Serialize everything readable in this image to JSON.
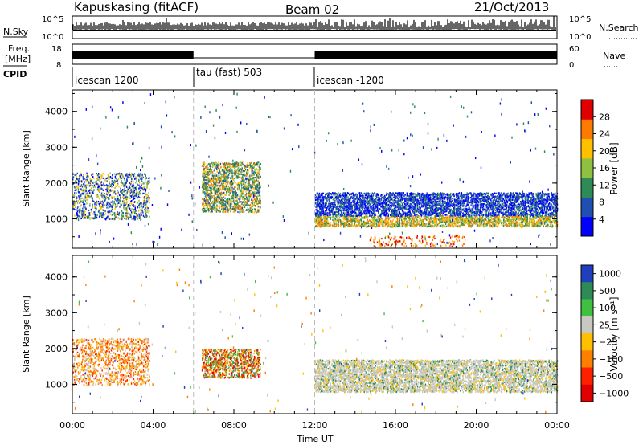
{
  "header": {
    "station": "Kapuskasing (fitACF)",
    "beam": "Beam 02",
    "date": "21/Oct/2013"
  },
  "aux_panels": {
    "nsky_label": "N.Sky",
    "nsky_ticks": [
      "10^5",
      "10^0"
    ],
    "nsearch_label": "N.Search",
    "nsearch_ticks": [
      "10^5",
      "10^0"
    ],
    "freq_label_1": "Freq.",
    "freq_label_2": "[MHz]",
    "freq_ticks": [
      "18",
      "8"
    ],
    "nave_label": "Nave",
    "nave_ticks": [
      "60",
      "0"
    ],
    "cpid_label": "CPID",
    "cpid_segments": [
      {
        "label": "icescan 1200",
        "start": 0,
        "end": 6
      },
      {
        "label": "tau (fast) 503",
        "start": 6,
        "end": 12
      },
      {
        "label": "icescan -1200",
        "start": 12,
        "end": 24
      }
    ]
  },
  "chart_data": [
    {
      "type": "heatmap",
      "panel": "power",
      "ylabel": "Slant Range [km]",
      "yticks": [
        "1000",
        "2000",
        "3000",
        "4000"
      ],
      "ylim": [
        180,
        4600
      ],
      "xlim": [
        0,
        24
      ],
      "colorbar_label": "Power [dB]",
      "colorbar_ticks": [
        "4",
        "8",
        "12",
        "16",
        "20",
        "24",
        "28"
      ],
      "colors": [
        "#0000ff",
        "#1f4fb0",
        "#2e8b57",
        "#90c040",
        "#ffc000",
        "#ff7a00",
        "#e00000"
      ],
      "regions": [
        {
          "x": [
            0,
            3.8
          ],
          "y": [
            1000,
            2300
          ],
          "intensity": "medium"
        },
        {
          "x": [
            6.4,
            9.3
          ],
          "y": [
            1200,
            2600
          ],
          "intensity": "high"
        },
        {
          "x": [
            12,
            24
          ],
          "y": [
            800,
            1750
          ],
          "intensity": "low"
        },
        {
          "x": [
            14.7,
            19.5
          ],
          "y": [
            250,
            550
          ],
          "intensity": "high"
        }
      ]
    },
    {
      "type": "heatmap",
      "panel": "velocity",
      "ylabel": "Slant Range [km]",
      "yticks": [
        "1000",
        "2000",
        "3000",
        "4000"
      ],
      "ylim": [
        180,
        4600
      ],
      "xlim": [
        0,
        24
      ],
      "xlabel": "Time UT",
      "xticks": [
        "00:00",
        "04:00",
        "08:00",
        "12:00",
        "16:00",
        "20:00",
        "00:00"
      ],
      "colorbar_label": "Velocity [m s⁻¹]",
      "colorbar_ticks": [
        "1000",
        "500",
        "100",
        "25",
        "−25",
        "−100",
        "−500",
        "−1000"
      ],
      "colors": [
        "#1f3fbf",
        "#2e8b57",
        "#40c040",
        "#c8c8c0",
        "#ffc000",
        "#ff8000",
        "#ff2000",
        "#e00000"
      ],
      "regions": [
        {
          "x": [
            0,
            3.8
          ],
          "y": [
            1000,
            2300
          ],
          "intensity": "negative"
        },
        {
          "x": [
            6.4,
            9.3
          ],
          "y": [
            1200,
            2000
          ],
          "intensity": "mixed"
        },
        {
          "x": [
            12,
            24
          ],
          "y": [
            800,
            1700
          ],
          "intensity": "ground"
        }
      ]
    }
  ]
}
